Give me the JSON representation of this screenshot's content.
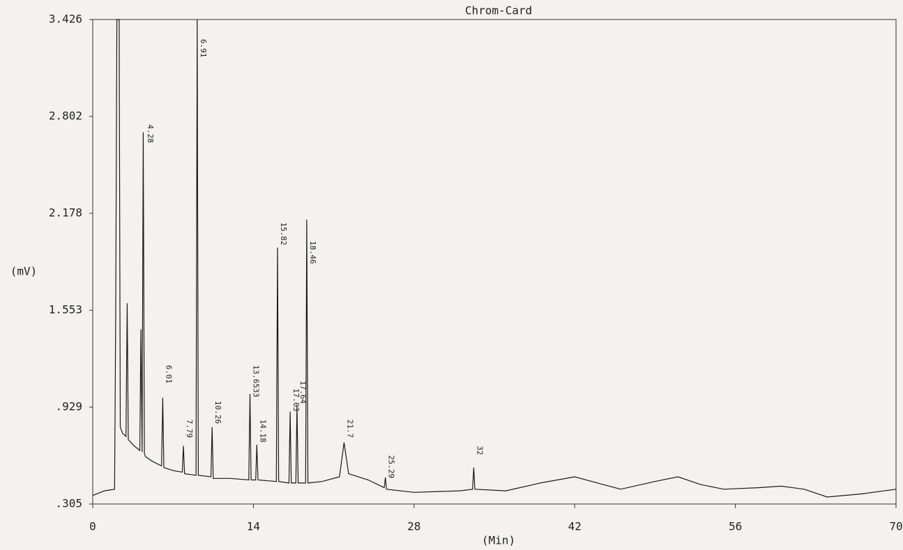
{
  "chart_data": {
    "type": "line",
    "title": "Chrom-Card",
    "x_label": "(Min)",
    "y_label": "(mV)",
    "x": [
      0,
      1,
      1.9,
      2.0,
      2.1,
      2.3,
      2.4,
      2.6,
      2.9,
      3.0,
      3.1,
      3.6,
      4.1,
      4.2,
      4.3,
      4.4,
      4.5,
      4.6,
      5.2,
      6.0,
      6.1,
      6.2,
      7.0,
      7.8,
      7.9,
      8.0,
      9.0,
      9.1,
      9.2,
      10.3,
      10.4,
      10.5,
      12,
      13.6,
      13.7,
      13.8,
      14.2,
      14.3,
      14.4,
      16.0,
      16.1,
      16.2,
      17.1,
      17.2,
      17.3,
      17.7,
      17.8,
      17.9,
      18.55,
      18.65,
      18.75,
      20,
      21.5,
      21.9,
      22.3,
      24,
      25.4,
      25.5,
      25.6,
      28,
      32,
      33.1,
      33.2,
      33.3,
      36,
      39,
      42,
      44,
      46,
      49,
      51,
      53,
      55,
      58,
      60,
      62,
      64,
      67,
      70
    ],
    "series": [
      {
        "name": "signal",
        "color": "#1a1a1a",
        "values": [
          0.36,
          0.39,
          0.4,
          1.5,
          3.426,
          3.426,
          0.8,
          0.76,
          0.74,
          1.598,
          0.72,
          0.68,
          0.65,
          1.43,
          0.64,
          2.7,
          0.63,
          0.61,
          0.58,
          0.55,
          0.99,
          0.54,
          0.52,
          0.51,
          0.68,
          0.5,
          0.49,
          3.426,
          0.49,
          0.48,
          0.8,
          0.47,
          0.47,
          0.46,
          1.014,
          0.46,
          0.46,
          0.687,
          0.46,
          0.45,
          1.957,
          0.45,
          0.44,
          0.9,
          0.44,
          0.44,
          0.94,
          0.44,
          0.44,
          2.137,
          0.44,
          0.45,
          0.48,
          0.7,
          0.5,
          0.46,
          0.41,
          0.476,
          0.4,
          0.38,
          0.39,
          0.4,
          0.54,
          0.4,
          0.39,
          0.44,
          0.48,
          0.44,
          0.4,
          0.45,
          0.48,
          0.43,
          0.4,
          0.41,
          0.42,
          0.4,
          0.35,
          0.37,
          0.4
        ]
      }
    ],
    "xlim": [
      0,
      70
    ],
    "xticks": [
      0,
      14,
      28,
      42,
      56,
      70
    ],
    "ylim": [
      0.305,
      3.426
    ],
    "yticks": [
      {
        "value": 0.305,
        "label": ".305"
      },
      {
        "value": 0.929,
        "label": ".929"
      },
      1.553,
      2.178,
      2.802,
      3.426
    ],
    "annotations": [
      {
        "label": "4.28",
        "x": 4.5,
        "y": 2.75
      },
      {
        "label": "6.01",
        "x": 6.1,
        "y": 1.2
      },
      {
        "label": "6.91",
        "x": 9.1,
        "y": 3.3
      },
      {
        "label": "7.79",
        "x": 7.9,
        "y": 0.85
      },
      {
        "label": "10.26",
        "x": 10.4,
        "y": 0.97
      },
      {
        "label": "13.6533",
        "x": 13.7,
        "y": 1.2
      },
      {
        "label": "14.18",
        "x": 14.3,
        "y": 0.85
      },
      {
        "label": "15.82",
        "x": 16.1,
        "y": 2.12
      },
      {
        "label": "17.03",
        "x": 17.2,
        "y": 1.05
      },
      {
        "label": "17.64",
        "x": 17.8,
        "y": 1.1
      },
      {
        "label": "18.46",
        "x": 18.65,
        "y": 2.0
      },
      {
        "label": "21.7",
        "x": 21.9,
        "y": 0.85
      },
      {
        "label": "25.29",
        "x": 25.5,
        "y": 0.62
      },
      {
        "label": "32",
        "x": 33.2,
        "y": 0.68
      }
    ]
  }
}
